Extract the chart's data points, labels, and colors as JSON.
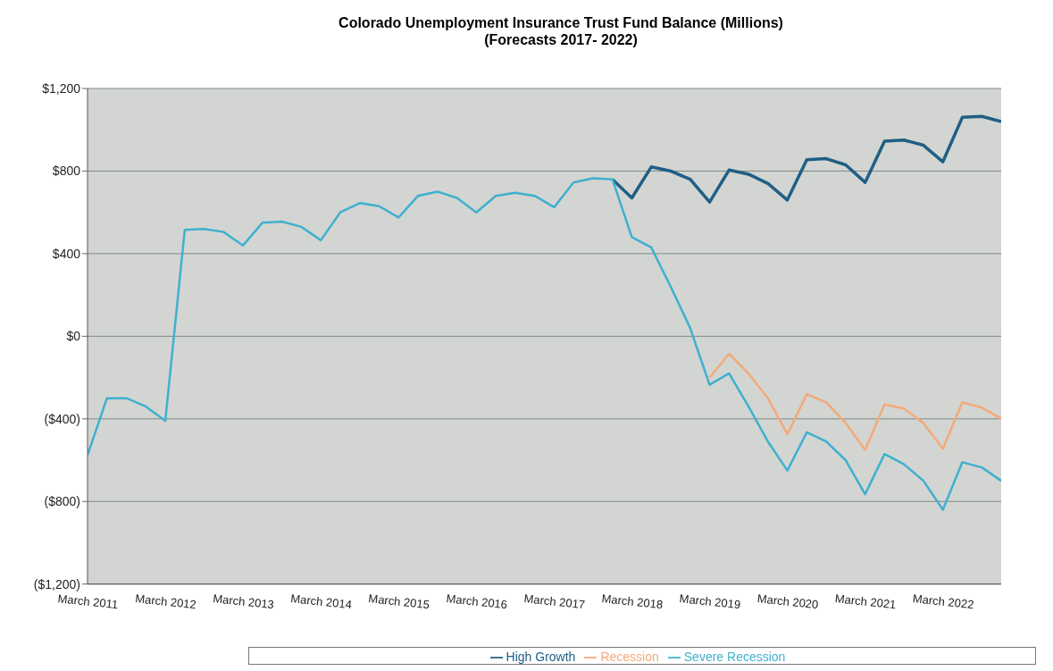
{
  "chart_data": {
    "type": "line",
    "title": "Colorado Unemployment Insurance Trust Fund Balance (Millions)",
    "subtitle": "(Forecasts 2017- 2022)",
    "categories": [
      "March 2011",
      null,
      null,
      null,
      "March 2012",
      null,
      null,
      null,
      "March 2013",
      null,
      null,
      null,
      "March 2014",
      null,
      null,
      null,
      "March 2015",
      null,
      null,
      null,
      "March 2016",
      null,
      null,
      null,
      "March 2017",
      null,
      null,
      null,
      "March 2018",
      null,
      null,
      null,
      "March 2019",
      null,
      null,
      null,
      "March 2020",
      null,
      null,
      null,
      "March 2021",
      null,
      null,
      null,
      "March 2022",
      null,
      null,
      null
    ],
    "series": [
      {
        "name": "High Growth",
        "color": "#1f5f85",
        "values": [
          null,
          null,
          null,
          null,
          null,
          null,
          null,
          null,
          null,
          null,
          null,
          null,
          null,
          null,
          null,
          null,
          null,
          null,
          null,
          null,
          null,
          null,
          null,
          null,
          null,
          null,
          null,
          760,
          670,
          820,
          800,
          760,
          650,
          805,
          785,
          740,
          660,
          855,
          860,
          830,
          745,
          945,
          950,
          925,
          845,
          1060,
          1065,
          1040
        ]
      },
      {
        "name": "Recession",
        "color": "#f4a97a",
        "values": [
          null,
          null,
          null,
          null,
          null,
          null,
          null,
          null,
          null,
          null,
          null,
          null,
          null,
          null,
          null,
          null,
          null,
          null,
          null,
          null,
          null,
          null,
          null,
          null,
          null,
          null,
          null,
          null,
          null,
          null,
          null,
          null,
          -200,
          -85,
          -180,
          -300,
          -475,
          -280,
          -320,
          -420,
          -550,
          -330,
          -350,
          -420,
          -545,
          -320,
          -345,
          -400
        ]
      },
      {
        "name": "Severe Recession",
        "color": "#3fb0cf",
        "values": [
          -575,
          -300,
          -300,
          -340,
          -410,
          515,
          520,
          505,
          440,
          550,
          555,
          530,
          465,
          600,
          645,
          630,
          575,
          680,
          700,
          670,
          600,
          680,
          695,
          680,
          625,
          745,
          765,
          760,
          480,
          430,
          240,
          40,
          -235,
          -180,
          -340,
          -510,
          -650,
          -465,
          -510,
          -600,
          -765,
          -570,
          -620,
          -700,
          -840,
          -610,
          -635,
          -700
        ]
      }
    ],
    "ylim": [
      -1200,
      1200
    ],
    "yticks": [
      {
        "value": -1200,
        "label": "($1,200)"
      },
      {
        "value": -800,
        "label": "($800)"
      },
      {
        "value": -400,
        "label": "($400)"
      },
      {
        "value": 0,
        "label": "$0"
      },
      {
        "value": 400,
        "label": "$400"
      },
      {
        "value": 800,
        "label": "$800"
      },
      {
        "value": 1200,
        "label": "$1,200"
      }
    ],
    "grid": "y",
    "legend": "bottom",
    "marker": "none",
    "line_style": "solid"
  }
}
